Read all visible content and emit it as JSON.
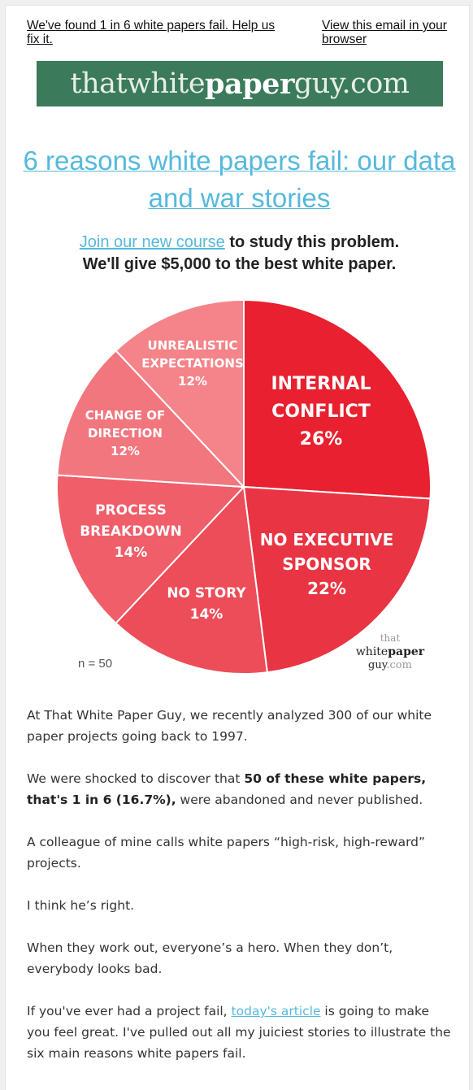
{
  "preheader": {
    "left_link": "We've found 1 in 6 white papers fail. Help us fix it.",
    "right_link": "View this email in your browser"
  },
  "banner": {
    "part1": "thatwhite",
    "part2": "paper",
    "part3": "guy.com"
  },
  "headline": "6 reasons white papers fail: our data and war stories",
  "subhead": {
    "link": "Join our new course",
    "rest1": " to study this problem.",
    "line2": "We'll give $5,000 to the best white paper."
  },
  "chart_data": {
    "type": "pie",
    "slices": [
      {
        "label": [
          "INTERNAL",
          "CONFLICT",
          "26%"
        ],
        "value": 26,
        "color": "#e8202f"
      },
      {
        "label": [
          "NO EXECUTIVE",
          "SPONSOR",
          "22%"
        ],
        "value": 22,
        "color": "#e93443"
      },
      {
        "label": [
          "NO STORY",
          "14%"
        ],
        "value": 14,
        "color": "#ed4d59"
      },
      {
        "label": [
          "PROCESS",
          "BREAKDOWN",
          "14%"
        ],
        "value": 14,
        "color": "#ef5e69"
      },
      {
        "label": [
          "CHANGE OF",
          "DIRECTION",
          "12%"
        ],
        "value": 12,
        "color": "#f2767e"
      },
      {
        "label": [
          "UNREALISTIC",
          "EXPECTATIONS",
          "12%"
        ],
        "value": 12,
        "color": "#f48489"
      }
    ],
    "note": "n = 50",
    "logo": {
      "top": "that",
      "mid1": "white",
      "mid2": "paper",
      "bottom1": "guy",
      "bottom2": ".com"
    }
  },
  "body": {
    "p1": "At That White Paper Guy, we recently analyzed 300 of our white paper projects going back to 1997.",
    "p2_a": "We were shocked to discover that ",
    "p2_b": "50 of these white papers, that's 1 in 6 (16.7%),",
    "p2_c": " were abandoned and never published.",
    "p3": "A colleague of mine calls white papers “high-risk, high-reward” projects.",
    "p4": "I think he’s right.",
    "p5": "When they work out, everyone’s a hero. When they don’t, everybody looks bad.",
    "p6_a": "If you've ever had a project fail, ",
    "p6_link": "today's article",
    "p6_b": " is going to make you feel great. I've pulled out all my juiciest stories to illustrate the six main reasons white papers fail."
  }
}
